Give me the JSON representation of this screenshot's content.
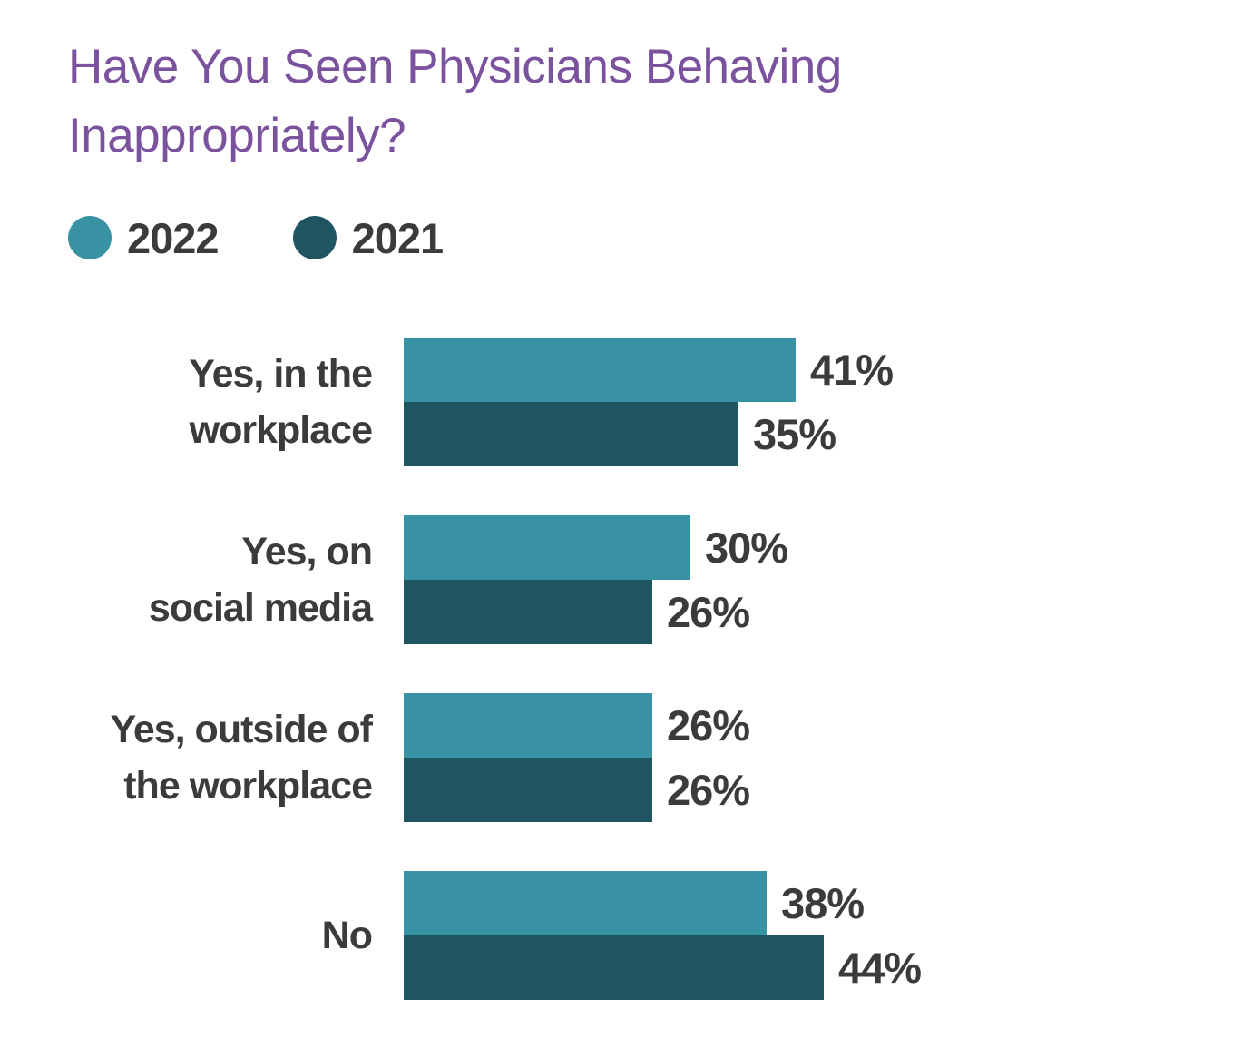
{
  "title": {
    "text": "Have You Seen Physicians Behaving Inappropriately?",
    "color": "#7B529E"
  },
  "colors": {
    "accent_2022": "#3992A3",
    "accent_2021": "#1E5561",
    "text": "#3B3B3B",
    "background": "#FFFFFF"
  },
  "chart_data": {
    "type": "bar",
    "orientation": "horizontal",
    "title": "Have You Seen Physicians Behaving Inappropriately?",
    "categories": [
      "Yes, in the workplace",
      "Yes, on social media",
      "Yes, outside of the workplace",
      "No"
    ],
    "category_lines": [
      [
        "Yes, in the",
        "workplace"
      ],
      [
        "Yes, on",
        "social media"
      ],
      [
        "Yes, outside of",
        "the workplace"
      ],
      [
        "No"
      ]
    ],
    "series": [
      {
        "name": "2022",
        "color": "#3992A3",
        "values": [
          41,
          30,
          26,
          38
        ]
      },
      {
        "name": "2021",
        "color": "#1E5561",
        "values": [
          35,
          26,
          26,
          44
        ]
      }
    ],
    "value_suffix": "%",
    "value_labels_shown": true,
    "xlim": [
      0,
      50
    ],
    "grid": false,
    "axis_ticks_shown": false,
    "legend_position": "top-left"
  }
}
